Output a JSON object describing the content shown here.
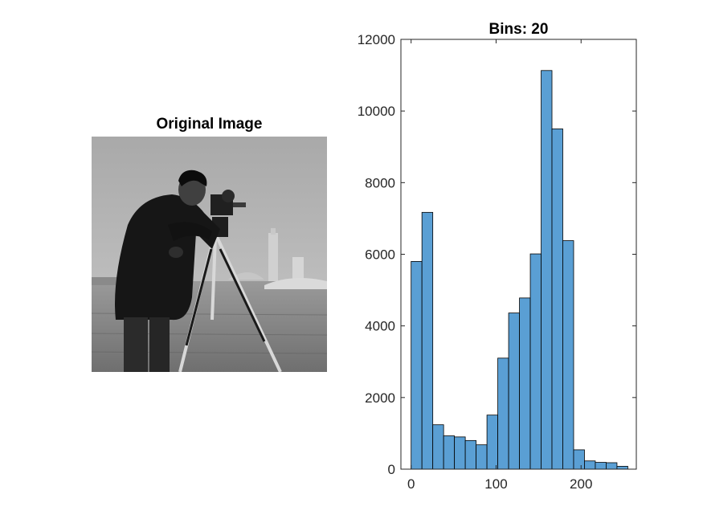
{
  "image_panel": {
    "title": "Original Image",
    "icon": "photo-cameraman-icon"
  },
  "chart_data": {
    "type": "bar",
    "title": "Bins: 20",
    "xlabel": "",
    "ylabel": "",
    "bin_edges": [
      0,
      12.75,
      25.5,
      38.25,
      51,
      63.75,
      76.5,
      89.25,
      102,
      114.75,
      127.5,
      140.25,
      153,
      165.75,
      178.5,
      191.25,
      204,
      216.75,
      229.5,
      242.25,
      255
    ],
    "values": [
      5800,
      7170,
      1240,
      930,
      900,
      800,
      680,
      1510,
      3100,
      4360,
      4780,
      6010,
      11130,
      9500,
      6380,
      540,
      230,
      190,
      180,
      80
    ],
    "xlim": [
      -12,
      265
    ],
    "ylim": [
      0,
      12000
    ],
    "x_ticks": [
      0,
      100,
      200
    ],
    "y_ticks": [
      0,
      2000,
      4000,
      6000,
      8000,
      10000,
      12000
    ],
    "grid": false,
    "colors": {
      "bar_fill": "#5a9fd4",
      "bar_edge": "#000000",
      "axis": "#262626"
    }
  }
}
